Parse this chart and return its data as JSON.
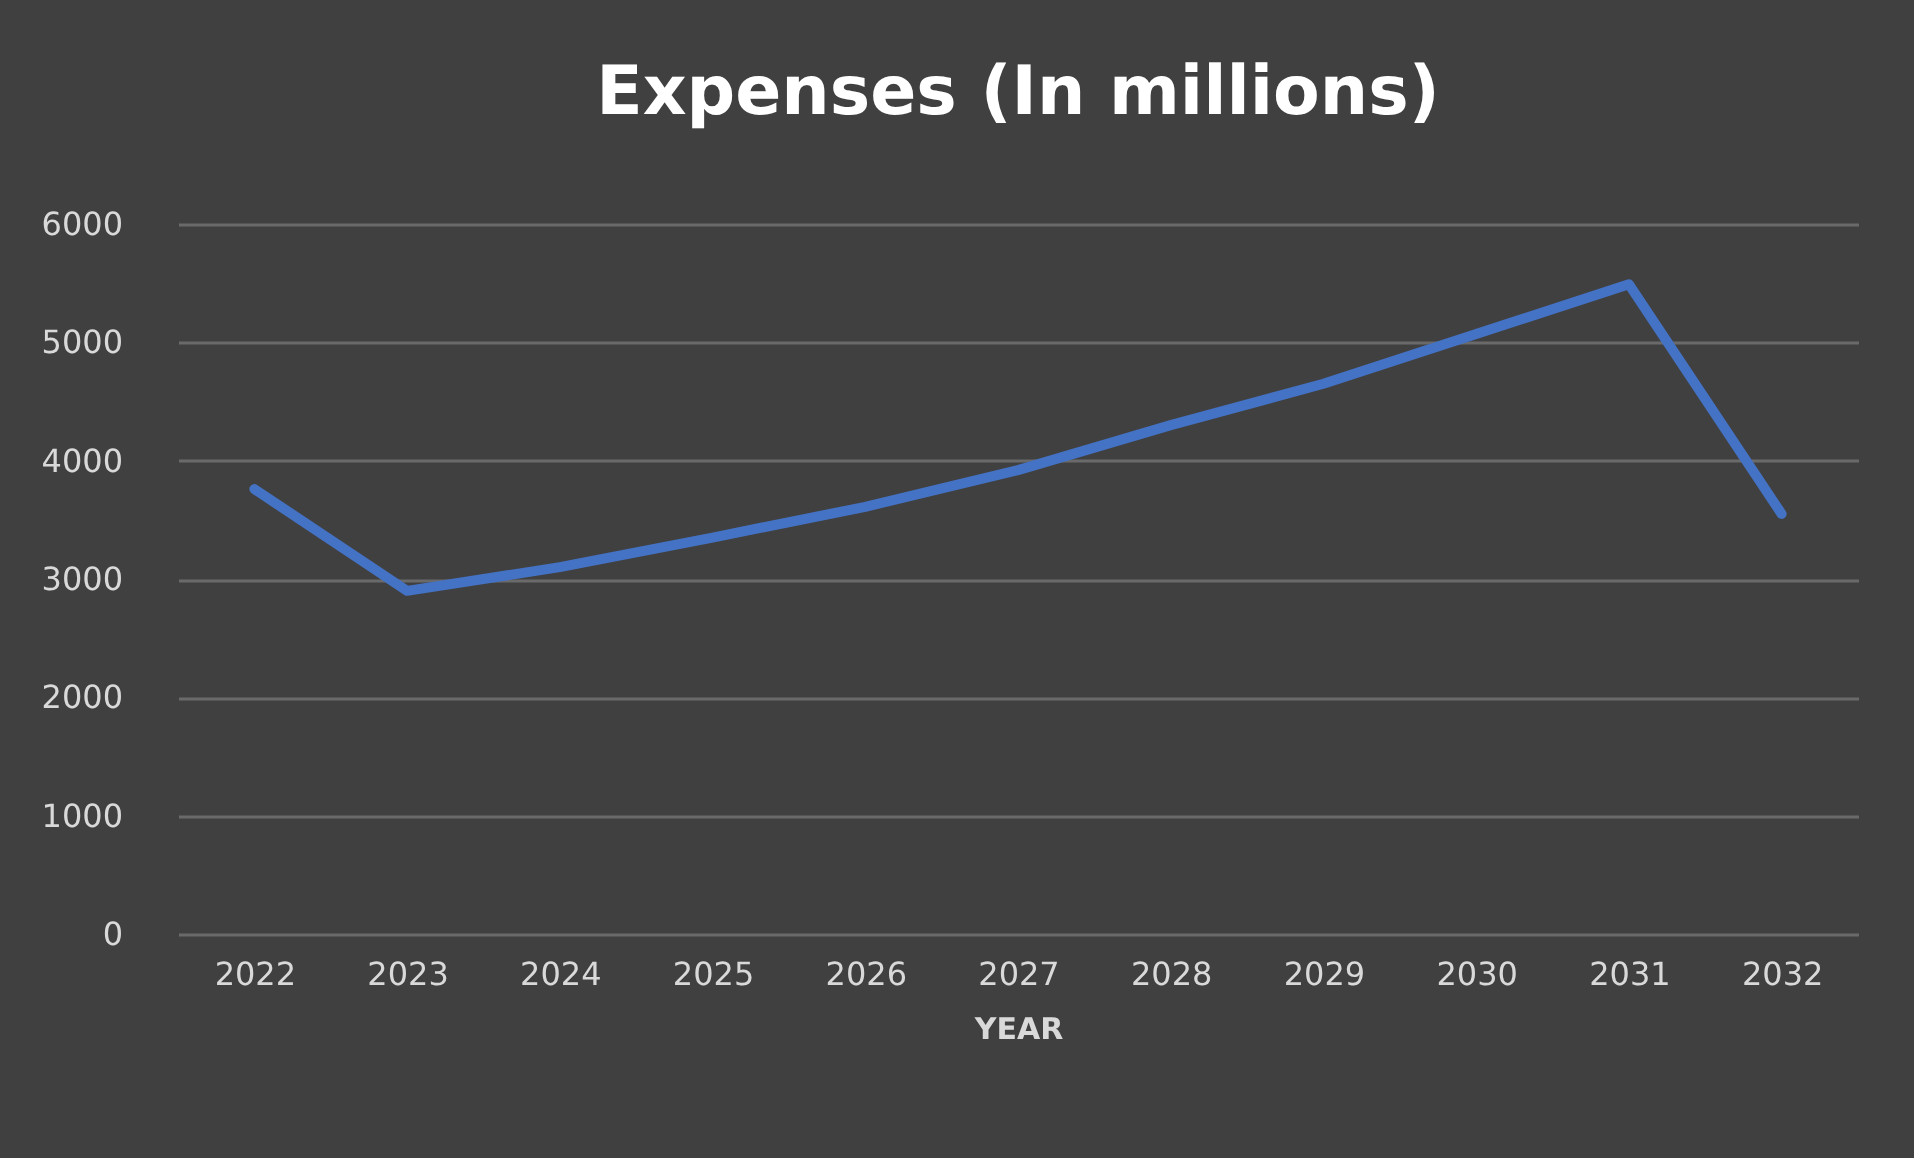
{
  "chart_data": {
    "type": "line",
    "title": "Expenses (In millions)",
    "xlabel": "YEAR",
    "categories": [
      "2022",
      "2023",
      "2024",
      "2025",
      "2026",
      "2027",
      "2028",
      "2029",
      "2030",
      "2031",
      "2032"
    ],
    "series": [
      {
        "color": "#4472c4",
        "values": [
          3760,
          2900,
          3100,
          3350,
          3610,
          3920,
          4300,
          4650,
          5070,
          5490,
          3550
        ]
      }
    ],
    "ylim": [
      0,
      6000
    ],
    "yticks": [
      0,
      1000,
      2000,
      3000,
      4000,
      5000,
      6000
    ],
    "grid": "y",
    "legend": false,
    "marker": "none",
    "line_style": "solid"
  }
}
